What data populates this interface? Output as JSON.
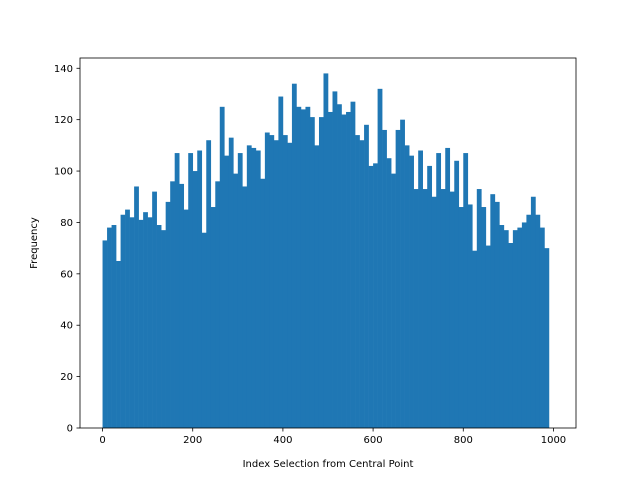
{
  "chart_data": {
    "type": "bar",
    "title": "",
    "xlabel": "Index Selection from Central Point",
    "ylabel": "Frequency",
    "xlim": [
      -50,
      1050
    ],
    "ylim": [
      0,
      144
    ],
    "bin_start": 0,
    "bin_width": 10,
    "grid": false,
    "legend": "none",
    "bar_color": "#1f77b4",
    "xticks": [
      0,
      200,
      400,
      600,
      800,
      1000
    ],
    "yticks": [
      0,
      20,
      40,
      60,
      80,
      100,
      120,
      140
    ],
    "values": [
      73,
      78,
      79,
      65,
      83,
      85,
      82,
      94,
      81,
      84,
      82,
      92,
      79,
      77,
      88,
      96,
      107,
      95,
      85,
      107,
      100,
      108,
      76,
      112,
      86,
      96,
      125,
      106,
      113,
      99,
      107,
      94,
      110,
      109,
      108,
      97,
      115,
      114,
      112,
      129,
      114,
      111,
      134,
      125,
      124,
      125,
      121,
      110,
      121,
      138,
      123,
      131,
      126,
      122,
      123,
      127,
      114,
      112,
      118,
      102,
      103,
      132,
      116,
      105,
      99,
      116,
      120,
      110,
      106,
      93,
      108,
      93,
      102,
      90,
      107,
      93,
      109,
      92,
      104,
      86,
      107,
      87,
      69,
      93,
      86,
      71,
      91,
      88,
      79,
      77,
      72,
      77,
      78,
      80,
      83,
      90,
      83,
      78,
      70,
      0
    ]
  }
}
